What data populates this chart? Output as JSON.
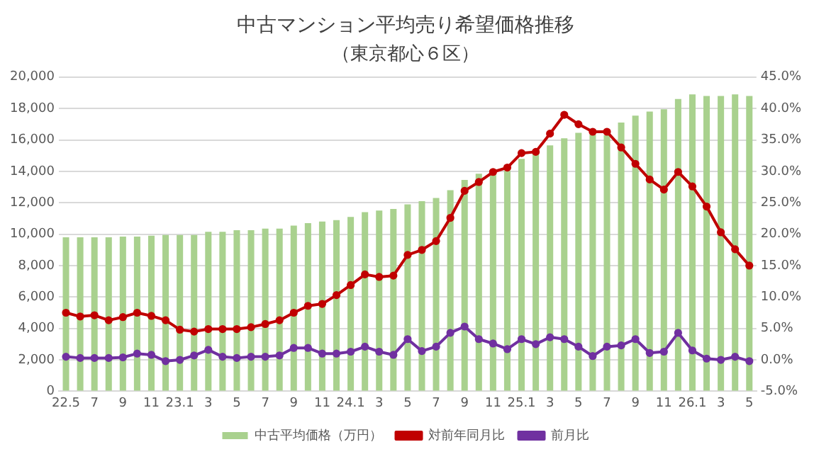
{
  "chart_data": {
    "type": "bar",
    "title": "中古マンション平均売り希望価格推移",
    "subtitle": "（東京都心６区）",
    "categories": [
      "22.5",
      null,
      "7",
      null,
      "9",
      null,
      "11",
      null,
      "23.1",
      null,
      "3",
      null,
      "5",
      null,
      "7",
      null,
      "9",
      null,
      "11",
      null,
      "24.1",
      null,
      "3",
      null,
      "5",
      null,
      "7",
      null,
      "9",
      null,
      "11",
      null,
      "25.1",
      null,
      "3",
      null,
      "5",
      null,
      "7",
      null,
      "9",
      null,
      "11",
      null,
      "26.1",
      null,
      "3",
      null,
      "5"
    ],
    "series": [
      {
        "name": "中古平均価格（万円）",
        "color": "#a9d18e",
        "values": [
          9800,
          9800,
          9800,
          9800,
          9850,
          9850,
          9900,
          9950,
          9950,
          9950,
          10150,
          10150,
          10250,
          10250,
          10350,
          10350,
          10550,
          10700,
          10800,
          10900,
          11100,
          11400,
          11500,
          11600,
          11900,
          12100,
          12300,
          12800,
          13450,
          13850,
          14050,
          14050,
          14800,
          15100,
          15650,
          16100,
          16450,
          16350,
          16300,
          17100,
          17550,
          17800,
          17950,
          18600,
          18900,
          18800,
          18800,
          18900,
          18800
        ]
      },
      {
        "name": "対前年同月比",
        "type": "line",
        "axis": "y2",
        "color": "#c00000",
        "values": [
          7.5,
          6.9,
          7.1,
          6.3,
          6.8,
          7.5,
          7.0,
          6.3,
          4.8,
          4.5,
          4.9,
          4.9,
          4.9,
          5.2,
          5.7,
          6.3,
          7.5,
          8.6,
          8.9,
          10.3,
          11.9,
          13.6,
          13.2,
          13.4,
          16.7,
          17.5,
          18.9,
          22.6,
          26.9,
          28.3,
          29.9,
          30.6,
          32.9,
          33.1,
          36.0,
          39.0,
          37.5,
          36.3,
          36.3,
          33.8,
          31.2,
          28.7,
          27.1,
          29.9,
          27.6,
          24.4,
          20.3,
          17.6,
          15.0
        ]
      },
      {
        "name": "前月比",
        "type": "line",
        "axis": "y2",
        "color": "#7030a0",
        "values": [
          0.5,
          0.3,
          0.3,
          0.3,
          0.4,
          1.0,
          0.8,
          -0.2,
          0.0,
          0.7,
          1.6,
          0.5,
          0.3,
          0.5,
          0.5,
          0.7,
          1.9,
          1.9,
          1.0,
          1.0,
          1.3,
          2.1,
          1.3,
          0.8,
          3.3,
          1.4,
          2.1,
          4.3,
          5.3,
          3.3,
          2.6,
          1.7,
          3.3,
          2.5,
          3.6,
          3.3,
          2.1,
          0.6,
          2.1,
          2.3,
          3.3,
          1.1,
          1.3,
          4.3,
          1.5,
          0.2,
          0.0,
          0.5,
          -0.2
        ]
      }
    ],
    "ylim": [
      0,
      20000
    ],
    "yticks": [
      {
        "value": 0,
        "label": "0"
      },
      {
        "value": 2000,
        "label": "2,000"
      },
      {
        "value": 4000,
        "label": "4,000"
      },
      {
        "value": 6000,
        "label": "6,000"
      },
      {
        "value": 8000,
        "label": "8,000"
      },
      {
        "value": 10000,
        "label": "10,000"
      },
      {
        "value": 12000,
        "label": "12,000"
      },
      {
        "value": 14000,
        "label": "14,000"
      },
      {
        "value": 16000,
        "label": "16,000"
      },
      {
        "value": 18000,
        "label": "18,000"
      },
      {
        "value": 20000,
        "label": "20,000"
      }
    ],
    "y2lim": [
      -5,
      45
    ],
    "y2ticks": [
      {
        "value": -5,
        "label": "-5.0%"
      },
      {
        "value": 0,
        "label": "0.0%"
      },
      {
        "value": 5,
        "label": "5.0%"
      },
      {
        "value": 10,
        "label": "10.0%"
      },
      {
        "value": 15,
        "label": "15.0%"
      },
      {
        "value": 20,
        "label": "20.0%"
      },
      {
        "value": 25,
        "label": "25.0%"
      },
      {
        "value": 30,
        "label": "30.0%"
      },
      {
        "value": 35,
        "label": "35.0%"
      },
      {
        "value": 40,
        "label": "40.0%"
      },
      {
        "value": 45,
        "label": "45.0%"
      }
    ],
    "grid": "y",
    "legend": "bottom",
    "marker": "circle",
    "line_style": "solid"
  }
}
